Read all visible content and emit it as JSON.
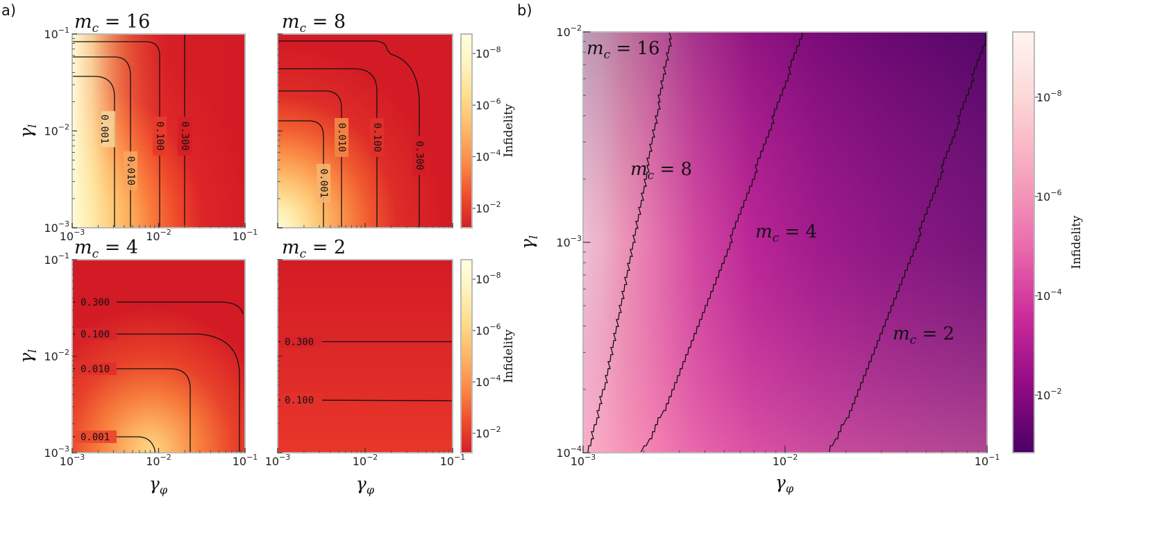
{
  "panel_labels": [
    "a)",
    "b)"
  ],
  "chart_data": [
    {
      "type": "heatmap",
      "panel": "a)",
      "title": "m_c = 16",
      "xlabel": "γ_φ",
      "ylabel": "γ_l",
      "x_scale": "log",
      "y_scale": "log",
      "xlim": [
        0.001,
        0.1
      ],
      "ylim": [
        0.001,
        0.1
      ],
      "x_ticks": [
        "10^-3",
        "10^-2",
        "10^-1"
      ],
      "y_ticks": [
        "10^-3",
        "10^-2",
        "10^-1"
      ],
      "colormap": "YlOrRd (reversed)",
      "contours": [
        {
          "level": "0.001",
          "x_at_bottom": 0.0032
        },
        {
          "level": "0.010",
          "x_at_bottom": 0.0049
        },
        {
          "level": "0.100",
          "x_at_bottom": 0.0095
        },
        {
          "level": "0.300",
          "x_at_bottom": 0.021
        }
      ],
      "colorbar": {
        "label": "Infidelity",
        "scale": "log",
        "ticks": [
          "10^-8",
          "10^-6",
          "10^-4",
          "10^-2"
        ]
      }
    },
    {
      "type": "heatmap",
      "panel": "a)",
      "title": "m_c = 8",
      "xlabel": "",
      "ylabel": "",
      "x_scale": "log",
      "y_scale": "log",
      "xlim": [
        0.001,
        0.1
      ],
      "ylim": [
        0.001,
        0.1
      ],
      "x_ticks": [],
      "y_ticks": [],
      "colormap": "YlOrRd (reversed)",
      "contours": [
        {
          "level": "0.001",
          "x_at_bottom": 0.0035
        },
        {
          "level": "0.010",
          "x_at_bottom": 0.0058
        },
        {
          "level": "0.100",
          "x_at_bottom": 0.0145
        },
        {
          "level": "0.300",
          "x_at_bottom": 0.043
        }
      ],
      "colorbar": {
        "label": "Infidelity",
        "scale": "log",
        "ticks": [
          "10^-8",
          "10^-6",
          "10^-4",
          "10^-2"
        ]
      }
    },
    {
      "type": "heatmap",
      "panel": "a)",
      "title": "m_c = 4",
      "xlabel": "γ_φ",
      "ylabel": "γ_l",
      "x_scale": "log",
      "y_scale": "log",
      "xlim": [
        0.001,
        0.1
      ],
      "ylim": [
        0.001,
        0.1
      ],
      "x_ticks": [
        "10^-3",
        "10^-2",
        "10^-1"
      ],
      "y_ticks": [
        "10^-3",
        "10^-2",
        "10^-1"
      ],
      "colormap": "YlOrRd (reversed)",
      "contours": [
        {
          "level": "0.300",
          "y_at_left": 0.043
        },
        {
          "level": "0.100",
          "y_at_left": 0.016
        },
        {
          "level": "0.010",
          "y_at_left": 0.0044
        },
        {
          "level": "0.001",
          "y_at_left": 0.0014
        }
      ]
    },
    {
      "type": "heatmap",
      "panel": "a)",
      "title": "m_c = 2",
      "xlabel": "γ_φ",
      "ylabel": "",
      "x_scale": "log",
      "y_scale": "log",
      "xlim": [
        0.001,
        0.1
      ],
      "ylim": [
        0.001,
        0.1
      ],
      "x_ticks": [
        "10^-3",
        "10^-2",
        "10^-1"
      ],
      "y_ticks": [],
      "colormap": "YlOrRd (reversed)",
      "contours": [
        {
          "level": "0.300",
          "y_at_left": 0.021
        },
        {
          "level": "0.100",
          "y_at_left": 0.0044
        }
      ],
      "colorbar": {
        "label": "Infidelity",
        "scale": "log",
        "ticks": [
          "10^-8",
          "10^-6",
          "10^-4",
          "10^-2"
        ]
      }
    },
    {
      "type": "heatmap",
      "panel": "b)",
      "title": "",
      "xlabel": "γ_φ",
      "ylabel": "γ_l",
      "x_scale": "log",
      "y_scale": "log",
      "xlim": [
        0.001,
        0.1
      ],
      "ylim": [
        0.0001,
        0.01
      ],
      "x_ticks": [
        "10^-3",
        "10^-2",
        "10^-1"
      ],
      "y_ticks": [
        "10^-4",
        "10^-3",
        "10^-2"
      ],
      "colormap": "RdPu (reversed)",
      "region_labels": [
        "m_c = 16",
        "m_c = 8",
        "m_c = 4",
        "m_c = 2"
      ],
      "boundaries": [
        {
          "between": [
            "m_c = 16",
            "m_c = 8"
          ],
          "x_at_bottom": 0.001,
          "x_at_top": 0.0027
        },
        {
          "between": [
            "m_c = 8",
            "m_c = 4"
          ],
          "x_at_bottom": 0.0019,
          "x_at_top": 0.012
        },
        {
          "between": [
            "m_c = 4",
            "m_c = 2"
          ],
          "x_at_bottom": 0.016,
          "x_at_top": 0.1
        }
      ],
      "colorbar": {
        "label": "Infidelity",
        "scale": "log",
        "ticks": [
          "10^-8",
          "10^-6",
          "10^-4",
          "10^-2"
        ]
      }
    }
  ]
}
